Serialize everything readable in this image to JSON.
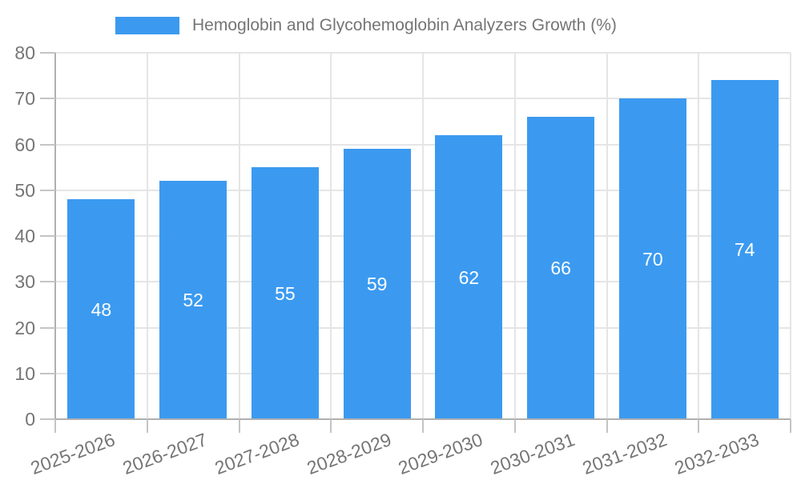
{
  "legend": {
    "label": "Hemoglobin and Glycohemoglobin Analyzers Growth (%)"
  },
  "chart_data": {
    "type": "bar",
    "title": "Hemoglobin and Glycohemoglobin Analyzers Growth (%)",
    "categories": [
      "2025-2026",
      "2026-2027",
      "2027-2028",
      "2028-2029",
      "2029-2030",
      "2030-2031",
      "2031-2032",
      "2032-2033"
    ],
    "values": [
      48,
      52,
      55,
      59,
      62,
      66,
      70,
      74
    ],
    "value_labels": [
      "48",
      "52",
      "55",
      "59",
      "62",
      "66",
      "70",
      "74"
    ],
    "xlabel": "",
    "ylabel": "",
    "ylim": [
      0,
      80
    ],
    "yticks": [
      0,
      10,
      20,
      30,
      40,
      50,
      60,
      70,
      80
    ],
    "grid": "on",
    "legend_position": "top-center",
    "colors": {
      "bar": "#3B9AF0",
      "value_label": "#FFFFFF",
      "axis_text": "#757575",
      "grid_line": "#E5E5E5",
      "axis_line": "#AFAFAF",
      "tick_mark": "#C4C4C4",
      "background": "#FFFFFF"
    }
  }
}
